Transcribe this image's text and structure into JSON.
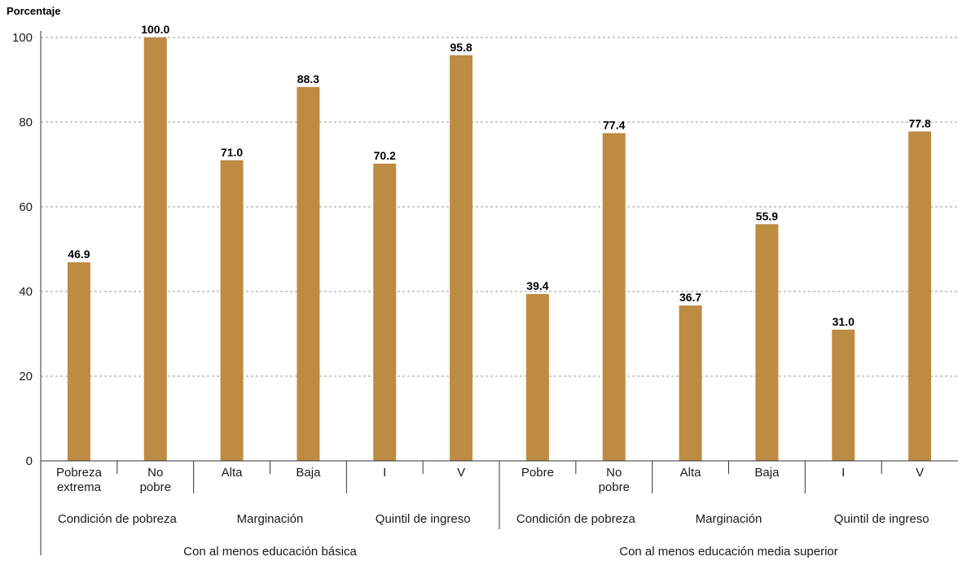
{
  "chart_data": {
    "type": "bar",
    "ylabel": "Porcentaje",
    "ylim": [
      0,
      100
    ],
    "yticks": [
      "0",
      "20",
      "40",
      "60",
      "80",
      "100"
    ],
    "grid": true,
    "bar_color": "#be8b43",
    "categories": [
      [
        "Pobreza",
        "extrema"
      ],
      [
        "No",
        "pobre"
      ],
      [
        "Alta"
      ],
      [
        "Baja"
      ],
      [
        "I"
      ],
      [
        "V"
      ],
      [
        "Pobre"
      ],
      [
        "No",
        "pobre"
      ],
      [
        "Alta"
      ],
      [
        "Baja"
      ],
      [
        "I"
      ],
      [
        "V"
      ]
    ],
    "values": [
      46.9,
      100.0,
      71.0,
      88.3,
      70.2,
      95.8,
      39.4,
      77.4,
      36.7,
      55.9,
      31.0,
      77.8
    ],
    "value_labels": [
      "46.9",
      "100.0",
      "71.0",
      "88.3",
      "70.2",
      "95.8",
      "39.4",
      "77.4",
      "36.7",
      "55.9",
      "31.0",
      "77.8"
    ],
    "groups_level2": [
      "Condición de pobreza",
      "Marginación",
      "Quintil de ingreso",
      "Condición de pobreza",
      "Marginación",
      "Quintil de ingreso"
    ],
    "groups_level1": [
      "Con al menos educación básica",
      "Con al menos educación media superior"
    ]
  }
}
